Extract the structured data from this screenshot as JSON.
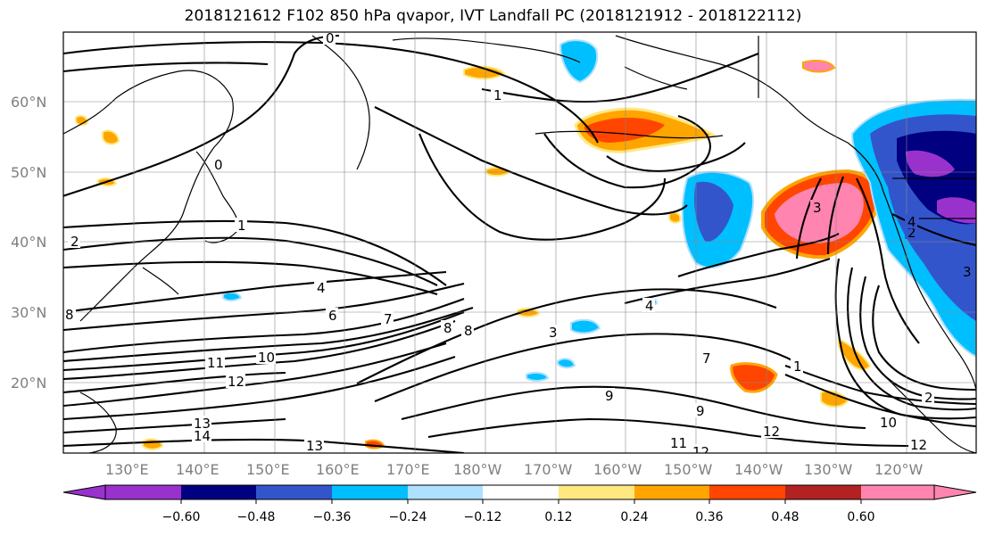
{
  "title": "2018121612 F102 850 hPa qvapor, IVT Landfall PC (2018121912 - 2018122112)",
  "latitudes": [
    {
      "label": "60°N"
    },
    {
      "label": "50°N"
    },
    {
      "label": "40°N"
    },
    {
      "label": "30°N"
    },
    {
      "label": "20°N"
    }
  ],
  "longitudes": [
    {
      "label": "130°E"
    },
    {
      "label": "140°E"
    },
    {
      "label": "150°E"
    },
    {
      "label": "160°E"
    },
    {
      "label": "170°E"
    },
    {
      "label": "180°W"
    },
    {
      "label": "170°W"
    },
    {
      "label": "160°W"
    },
    {
      "label": "150°W"
    },
    {
      "label": "140°W"
    },
    {
      "label": "130°W"
    },
    {
      "label": "120°W"
    }
  ],
  "colorbar": {
    "colors": [
      "#9932cc",
      "#000080",
      "#3355cc",
      "#00bfff",
      "#aee0ff",
      "#ffffff",
      "#ffe880",
      "#ffa500",
      "#ff4500",
      "#b22222",
      "#ff85b0"
    ],
    "ticks": [
      "−0.60",
      "−0.48",
      "−0.36",
      "−0.24",
      "−0.12",
      "0.12",
      "0.24",
      "0.36",
      "0.48",
      "0.60"
    ]
  },
  "contour_labels": [
    "0",
    "1",
    "1",
    "2",
    "3",
    "4",
    "4",
    "6",
    "7",
    "8",
    "9",
    "9",
    "10",
    "11",
    "11",
    "12",
    "12",
    "12",
    "13",
    "13",
    "14",
    "2",
    "3",
    "7",
    "8",
    "10",
    "12",
    "1",
    "0",
    "2",
    "8",
    "4",
    "3"
  ]
}
